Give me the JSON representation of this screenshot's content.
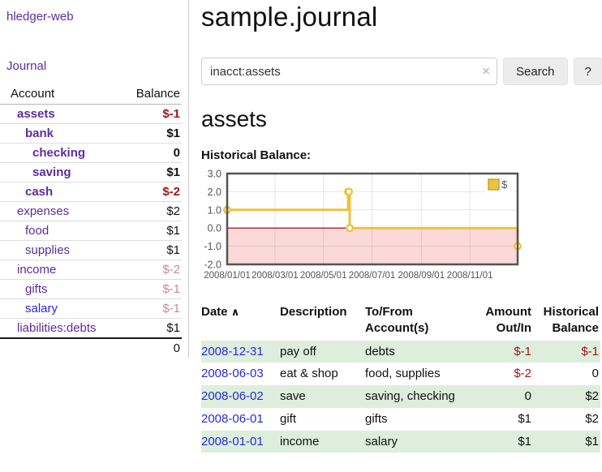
{
  "app": {
    "title": "hledger-web",
    "nav_journal": "Journal"
  },
  "sidebar": {
    "columns": {
      "account": "Account",
      "balance": "Balance"
    },
    "accounts": [
      {
        "name": "assets",
        "indent": 1,
        "bold": true,
        "link_color": "purple",
        "balance": "$-1",
        "balance_style": "neg-strong"
      },
      {
        "name": "bank",
        "indent": 2,
        "bold": true,
        "link_color": "purple",
        "balance": "$1",
        "balance_style": "normal"
      },
      {
        "name": "checking",
        "indent": 3,
        "bold": true,
        "link_color": "purple",
        "balance": "0",
        "balance_style": "normal"
      },
      {
        "name": "saving",
        "indent": 3,
        "bold": true,
        "link_color": "purple",
        "balance": "$1",
        "balance_style": "normal"
      },
      {
        "name": "cash",
        "indent": 2,
        "bold": true,
        "link_color": "purple",
        "balance": "$-2",
        "balance_style": "neg-strong"
      },
      {
        "name": "expenses",
        "indent": 1,
        "bold": false,
        "link_color": "purple",
        "balance": "$2",
        "balance_style": "normal"
      },
      {
        "name": "food",
        "indent": 2,
        "bold": false,
        "link_color": "purple",
        "balance": "$1",
        "balance_style": "normal"
      },
      {
        "name": "supplies",
        "indent": 2,
        "bold": false,
        "link_color": "purple",
        "balance": "$1",
        "balance_style": "normal"
      },
      {
        "name": "income",
        "indent": 1,
        "bold": false,
        "link_color": "purple",
        "balance": "$-2",
        "balance_style": "neg-soft"
      },
      {
        "name": "gifts",
        "indent": 2,
        "bold": false,
        "link_color": "purple",
        "balance": "$-1",
        "balance_style": "neg-soft"
      },
      {
        "name": "salary",
        "indent": 2,
        "bold": false,
        "link_color": "blue",
        "balance": "$-1",
        "balance_style": "neg-soft"
      },
      {
        "name": "liabilities:debts",
        "indent": 1,
        "bold": false,
        "link_color": "purple",
        "balance": "$1",
        "balance_style": "normal"
      }
    ],
    "total": "0"
  },
  "header": {
    "title": "sample.journal"
  },
  "search": {
    "value": "inacct:assets",
    "clear_icon": "×",
    "button_label": "Search",
    "help_label": "?"
  },
  "account_page": {
    "title": "assets",
    "chart_label": "Historical Balance:"
  },
  "chart_data": {
    "type": "line",
    "title": "Historical Balance",
    "ylim": [
      -2,
      3
    ],
    "x_range": [
      "2008-01-01",
      "2008-12-31"
    ],
    "x_ticks": [
      "2008/01/01",
      "2008/03/01",
      "2008/05/01",
      "2008/07/01",
      "2008/09/01",
      "2008/11/01"
    ],
    "y_ticks": [
      3.0,
      2.0,
      1.0,
      0.0,
      -1.0,
      -2.0
    ],
    "grid": true,
    "legend": {
      "position": "top-right",
      "label": "$",
      "swatch_color": "#edc240",
      "swatch_border": "#c9a232"
    },
    "series": [
      {
        "name": "$",
        "color": "#edc240",
        "steps": true,
        "points": [
          {
            "x": "2008-01-01",
            "y": 1
          },
          {
            "x": "2008-06-01",
            "y": 2
          },
          {
            "x": "2008-06-02",
            "y": 2
          },
          {
            "x": "2008-06-03",
            "y": 0
          },
          {
            "x": "2008-12-31",
            "y": -1
          }
        ]
      }
    ],
    "negative_region_fill": "#fcd9d9",
    "zero_line_color": "#8b0000",
    "axis_text_color": "#545454",
    "plot_border_color": "#545454"
  },
  "register": {
    "columns": {
      "date": "Date",
      "sort_icon": "∧",
      "description": "Description",
      "account_line1": "To/From",
      "account_line2": "Account(s)",
      "amount_line1": "Amount",
      "amount_line2": "Out/In",
      "balance_line1": "Historical",
      "balance_line2": "Balance"
    },
    "rows": [
      {
        "date": "2008-12-31",
        "description": "pay off",
        "accounts": "debts",
        "amount": "$-1",
        "amount_neg": true,
        "balance": "$-1",
        "balance_neg": true,
        "shaded": true
      },
      {
        "date": "2008-06-03",
        "description": "eat & shop",
        "accounts": "food, supplies",
        "amount": "$-2",
        "amount_neg": true,
        "balance": "0",
        "balance_neg": false,
        "shaded": false
      },
      {
        "date": "2008-06-02",
        "description": "save",
        "accounts": "saving, checking",
        "amount": "0",
        "amount_neg": false,
        "balance": "$2",
        "balance_neg": false,
        "shaded": true
      },
      {
        "date": "2008-06-01",
        "description": "gift",
        "accounts": "gifts",
        "amount": "$1",
        "amount_neg": false,
        "balance": "$2",
        "balance_neg": false,
        "shaded": false
      },
      {
        "date": "2008-01-01",
        "description": "income",
        "accounts": "salary",
        "amount": "$1",
        "amount_neg": false,
        "balance": "$1",
        "balance_neg": false,
        "shaded": true
      }
    ]
  },
  "colors": {
    "link_purple": "#5c2d9c",
    "link_blue": "#2a2ad5",
    "negative_strong": "#a31515",
    "negative_soft": "#c98a8a",
    "row_shade_green": "#ddeedd",
    "chart_line_gold": "#edc240",
    "chart_negative_pink": "#fcd9d9",
    "chart_zero_line": "#8b0000"
  }
}
